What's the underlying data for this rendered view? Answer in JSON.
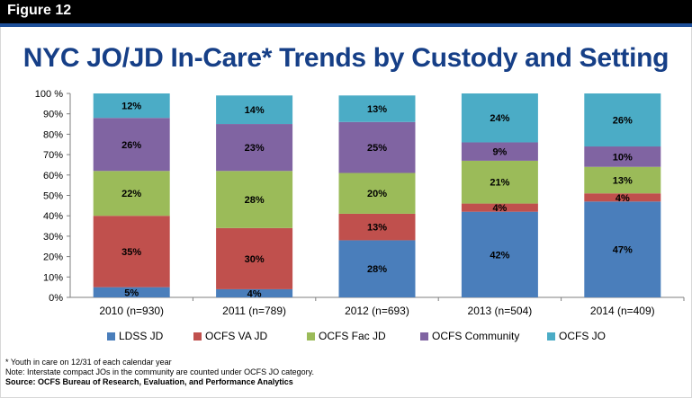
{
  "figure": {
    "label": "Figure 12",
    "title": "NYC JO/JD In-Care* Trends by Custody and Setting"
  },
  "colors": {
    "header_bg": "#000000",
    "header_accent": "#1d4f99",
    "title": "#163f87"
  },
  "chart_data": {
    "type": "bar",
    "stacked": true,
    "normalized_percent": true,
    "title": "NYC JO/JD In-Care* Trends by Custody and Setting",
    "categories": [
      "2010 (n=930)",
      "2011 (n=789)",
      "2012 (n=693)",
      "2013 (n=504)",
      "2014 (n=409)"
    ],
    "series": [
      {
        "name": "LDSS JD",
        "color": "#4a7ebb",
        "values": [
          5,
          4,
          28,
          42,
          47
        ],
        "labels": [
          "5%",
          "4%",
          "28%",
          "42%",
          "47%"
        ]
      },
      {
        "name": "OCFS VA JD",
        "color": "#c0504d",
        "values": [
          35,
          30,
          13,
          4,
          4
        ],
        "labels": [
          "35%",
          "30%",
          "13%",
          "4%",
          "4%"
        ]
      },
      {
        "name": "OCFS Fac JD",
        "color": "#9bbb59",
        "values": [
          22,
          28,
          20,
          21,
          13
        ],
        "labels": [
          "22%",
          "28%",
          "20%",
          "21%",
          "13%"
        ]
      },
      {
        "name": "OCFS Community",
        "color": "#8064a2",
        "values": [
          26,
          23,
          25,
          9,
          10
        ],
        "labels": [
          "26%",
          "23%",
          "25%",
          "9%",
          "10%"
        ]
      },
      {
        "name": "OCFS JO",
        "color": "#4bacc6",
        "values": [
          12,
          14,
          13,
          24,
          26
        ],
        "labels": [
          "12%",
          "14%",
          "13%",
          "24%",
          "26%"
        ]
      }
    ],
    "yticks": [
      "0%",
      "10%",
      "20%",
      "30%",
      "40%",
      "50%",
      "60%",
      "70%",
      "80%",
      "90%",
      "100 %"
    ],
    "ylim": [
      0,
      100
    ],
    "grid": false,
    "legend_position": "bottom"
  },
  "notes": {
    "footnote": "* Youth in care on 12/31 of each calendar year",
    "note": "Note: Interstate compact JOs in the community are counted under OCFS JO category.",
    "source": "Source: OCFS Bureau of Research, Evaluation, and Performance Analytics"
  }
}
